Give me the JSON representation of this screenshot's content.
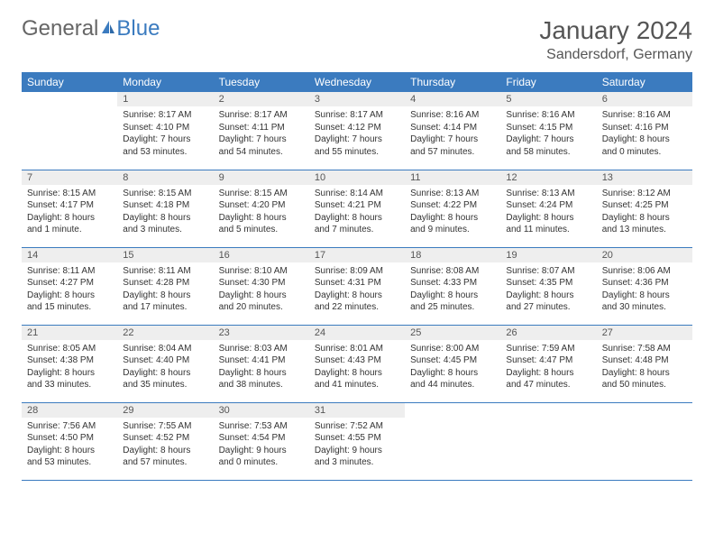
{
  "logo": {
    "text1": "General",
    "text2": "Blue"
  },
  "title": "January 2024",
  "location": "Sandersdorf, Germany",
  "colors": {
    "header_bg": "#3b7bbf",
    "header_text": "#ffffff",
    "daynum_bg": "#eeeeee",
    "border": "#3b7bbf",
    "text": "#333333"
  },
  "weekdays": [
    "Sunday",
    "Monday",
    "Tuesday",
    "Wednesday",
    "Thursday",
    "Friday",
    "Saturday"
  ],
  "first_day_col": 1,
  "days": [
    {
      "n": 1,
      "sr": "8:17 AM",
      "ss": "4:10 PM",
      "dl": "7 hours and 53 minutes."
    },
    {
      "n": 2,
      "sr": "8:17 AM",
      "ss": "4:11 PM",
      "dl": "7 hours and 54 minutes."
    },
    {
      "n": 3,
      "sr": "8:17 AM",
      "ss": "4:12 PM",
      "dl": "7 hours and 55 minutes."
    },
    {
      "n": 4,
      "sr": "8:16 AM",
      "ss": "4:14 PM",
      "dl": "7 hours and 57 minutes."
    },
    {
      "n": 5,
      "sr": "8:16 AM",
      "ss": "4:15 PM",
      "dl": "7 hours and 58 minutes."
    },
    {
      "n": 6,
      "sr": "8:16 AM",
      "ss": "4:16 PM",
      "dl": "8 hours and 0 minutes."
    },
    {
      "n": 7,
      "sr": "8:15 AM",
      "ss": "4:17 PM",
      "dl": "8 hours and 1 minute."
    },
    {
      "n": 8,
      "sr": "8:15 AM",
      "ss": "4:18 PM",
      "dl": "8 hours and 3 minutes."
    },
    {
      "n": 9,
      "sr": "8:15 AM",
      "ss": "4:20 PM",
      "dl": "8 hours and 5 minutes."
    },
    {
      "n": 10,
      "sr": "8:14 AM",
      "ss": "4:21 PM",
      "dl": "8 hours and 7 minutes."
    },
    {
      "n": 11,
      "sr": "8:13 AM",
      "ss": "4:22 PM",
      "dl": "8 hours and 9 minutes."
    },
    {
      "n": 12,
      "sr": "8:13 AM",
      "ss": "4:24 PM",
      "dl": "8 hours and 11 minutes."
    },
    {
      "n": 13,
      "sr": "8:12 AM",
      "ss": "4:25 PM",
      "dl": "8 hours and 13 minutes."
    },
    {
      "n": 14,
      "sr": "8:11 AM",
      "ss": "4:27 PM",
      "dl": "8 hours and 15 minutes."
    },
    {
      "n": 15,
      "sr": "8:11 AM",
      "ss": "4:28 PM",
      "dl": "8 hours and 17 minutes."
    },
    {
      "n": 16,
      "sr": "8:10 AM",
      "ss": "4:30 PM",
      "dl": "8 hours and 20 minutes."
    },
    {
      "n": 17,
      "sr": "8:09 AM",
      "ss": "4:31 PM",
      "dl": "8 hours and 22 minutes."
    },
    {
      "n": 18,
      "sr": "8:08 AM",
      "ss": "4:33 PM",
      "dl": "8 hours and 25 minutes."
    },
    {
      "n": 19,
      "sr": "8:07 AM",
      "ss": "4:35 PM",
      "dl": "8 hours and 27 minutes."
    },
    {
      "n": 20,
      "sr": "8:06 AM",
      "ss": "4:36 PM",
      "dl": "8 hours and 30 minutes."
    },
    {
      "n": 21,
      "sr": "8:05 AM",
      "ss": "4:38 PM",
      "dl": "8 hours and 33 minutes."
    },
    {
      "n": 22,
      "sr": "8:04 AM",
      "ss": "4:40 PM",
      "dl": "8 hours and 35 minutes."
    },
    {
      "n": 23,
      "sr": "8:03 AM",
      "ss": "4:41 PM",
      "dl": "8 hours and 38 minutes."
    },
    {
      "n": 24,
      "sr": "8:01 AM",
      "ss": "4:43 PM",
      "dl": "8 hours and 41 minutes."
    },
    {
      "n": 25,
      "sr": "8:00 AM",
      "ss": "4:45 PM",
      "dl": "8 hours and 44 minutes."
    },
    {
      "n": 26,
      "sr": "7:59 AM",
      "ss": "4:47 PM",
      "dl": "8 hours and 47 minutes."
    },
    {
      "n": 27,
      "sr": "7:58 AM",
      "ss": "4:48 PM",
      "dl": "8 hours and 50 minutes."
    },
    {
      "n": 28,
      "sr": "7:56 AM",
      "ss": "4:50 PM",
      "dl": "8 hours and 53 minutes."
    },
    {
      "n": 29,
      "sr": "7:55 AM",
      "ss": "4:52 PM",
      "dl": "8 hours and 57 minutes."
    },
    {
      "n": 30,
      "sr": "7:53 AM",
      "ss": "4:54 PM",
      "dl": "9 hours and 0 minutes."
    },
    {
      "n": 31,
      "sr": "7:52 AM",
      "ss": "4:55 PM",
      "dl": "9 hours and 3 minutes."
    }
  ],
  "labels": {
    "sunrise": "Sunrise:",
    "sunset": "Sunset:",
    "daylight": "Daylight:"
  }
}
